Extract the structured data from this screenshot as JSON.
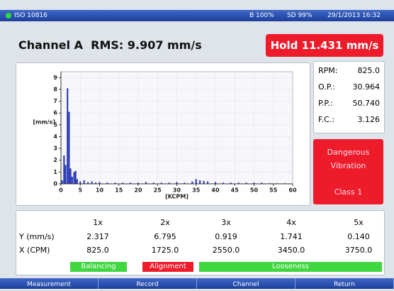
{
  "status_bar": {
    "standard": "ISO 10816",
    "battery": "B 100%",
    "storage": "SD 99%",
    "datetime": "29/1/2013 16:32"
  },
  "header": {
    "channel": "Channel A",
    "rms": "RMS: 9.907 mm/s",
    "hold": "Hold 11.431 mm/s"
  },
  "chart_data": {
    "type": "bar",
    "x_label": "[KCPM]",
    "y_label": "[mm/s]",
    "x": [
      0.3,
      0.8,
      1.2,
      1.7,
      2.1,
      2.5,
      2.9,
      3.4,
      3.8,
      4.2,
      5,
      6,
      7,
      8,
      9,
      10,
      12,
      14,
      16,
      18,
      20,
      22,
      24,
      26,
      28,
      30,
      32,
      34,
      35,
      36,
      37,
      38,
      40,
      42,
      44,
      46,
      48,
      50,
      52,
      54,
      56,
      58
    ],
    "values": [
      0.3,
      2.4,
      1.6,
      8.1,
      6.1,
      1.3,
      0.6,
      1.0,
      1.1,
      0.4,
      0.2,
      0.3,
      0.15,
      0.2,
      0.1,
      0.15,
      0.1,
      0.1,
      0.1,
      0.1,
      0.1,
      0.15,
      0.1,
      0.1,
      0.1,
      0.15,
      0.1,
      0.2,
      0.4,
      0.3,
      0.25,
      0.2,
      0.15,
      0.1,
      0.1,
      0.1,
      0.1,
      0.1,
      0.1,
      0.05,
      0.05,
      0.05
    ],
    "color": "#1f2fb0",
    "xlim": [
      0,
      60
    ],
    "ylim": [
      0,
      9.5
    ],
    "xticks": [
      0,
      5,
      10,
      15,
      20,
      25,
      30,
      35,
      40,
      45,
      50,
      55,
      60
    ],
    "yticks": [
      0,
      1,
      2,
      3,
      4,
      5,
      6,
      7,
      8,
      9
    ],
    "grid": true
  },
  "readings": [
    {
      "label": "RPM:",
      "value": "825.0"
    },
    {
      "label": "O.P.:",
      "value": "30.964"
    },
    {
      "label": "P.P.:",
      "value": "50.740"
    },
    {
      "label": "F.C.:",
      "value": "3.126"
    }
  ],
  "alarm": {
    "lines": [
      "Dangerous",
      "Vibration"
    ],
    "class": "Class 1"
  },
  "table": {
    "header": [
      "1x",
      "2x",
      "3x",
      "4x",
      "5x"
    ],
    "rows": [
      [
        "Y (mm/s)",
        "2.317",
        "6.795",
        "0.919",
        "1.741",
        "0.140"
      ],
      [
        "X (CPM)",
        "825.0",
        "1725.0",
        "2550.0",
        "3450.0",
        "3750.0"
      ]
    ]
  },
  "diagnosis": [
    "Balancing",
    "Alignment",
    "Looseness"
  ],
  "buttons": [
    "Measurement",
    "Record",
    "Channel",
    "Return"
  ]
}
